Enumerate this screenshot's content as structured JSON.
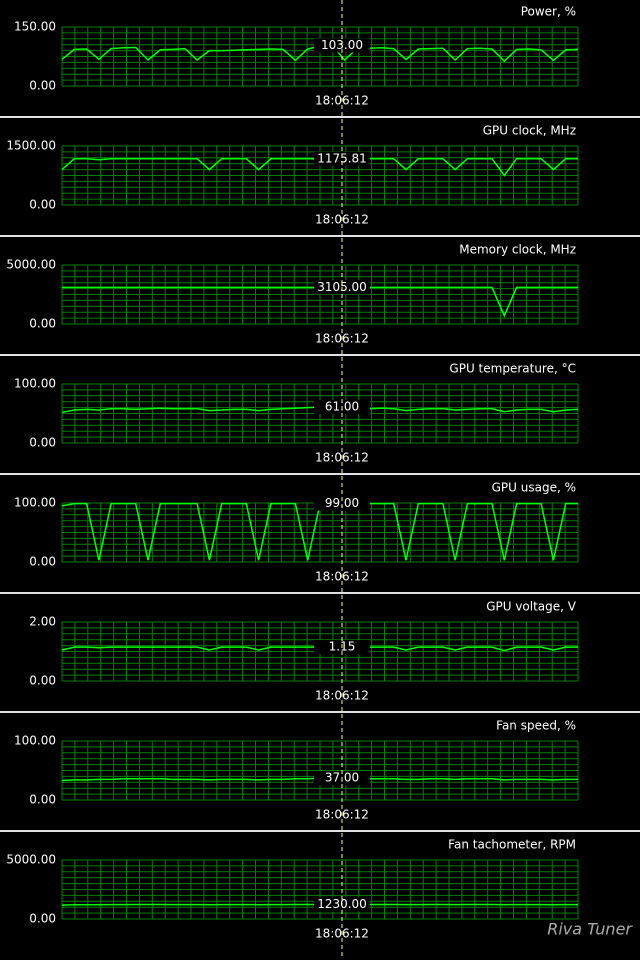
{
  "chart_data": [
    {
      "type": "line",
      "title": "Power, %",
      "time": "18:06:12",
      "current": {
        "value": 103,
        "label": "103.00"
      },
      "ylim": [
        0,
        150
      ],
      "yticks": [
        {
          "value": 0,
          "label": "0.00"
        },
        {
          "value": 150,
          "label": "150.00"
        }
      ],
      "color": "#00ff00",
      "grid": true,
      "values": [
        68,
        93,
        94,
        68,
        95,
        97,
        98,
        66,
        92,
        93,
        95,
        66,
        90,
        90,
        91,
        92,
        93,
        94,
        93,
        65,
        94,
        101,
        103,
        66,
        95,
        96,
        97,
        95,
        67,
        94,
        95,
        96,
        66,
        95,
        96,
        94,
        63,
        93,
        94,
        92,
        65,
        92,
        93
      ]
    },
    {
      "type": "line",
      "title": "GPU clock, MHz",
      "time": "18:06:12",
      "current": {
        "value": 1175.81,
        "label": "1175.81"
      },
      "ylim": [
        0,
        1500
      ],
      "yticks": [
        {
          "value": 0,
          "label": "0.00"
        },
        {
          "value": 1500,
          "label": "1500.00"
        }
      ],
      "color": "#00ff00",
      "grid": true,
      "values": [
        900,
        1176,
        1176,
        1150,
        1176,
        1176,
        1176,
        1176,
        1176,
        1176,
        1176,
        1176,
        900,
        1176,
        1176,
        1176,
        900,
        1176,
        1176,
        1176,
        1176,
        1176,
        1176,
        1176,
        1176,
        1176,
        1176,
        1176,
        900,
        1176,
        1176,
        1176,
        900,
        1176,
        1176,
        1176,
        750,
        1176,
        1176,
        1176,
        900,
        1176,
        1176
      ]
    },
    {
      "type": "line",
      "title": "Memory clock, MHz",
      "time": "18:06:12",
      "current": {
        "value": 3105,
        "label": "3105.00"
      },
      "ylim": [
        0,
        5000
      ],
      "yticks": [
        {
          "value": 0,
          "label": "0.00"
        },
        {
          "value": 5000,
          "label": "5000.00"
        }
      ],
      "color": "#00ff00",
      "grid": true,
      "values": [
        3105,
        3105,
        3105,
        3105,
        3105,
        3105,
        3105,
        3105,
        3105,
        3105,
        3105,
        3105,
        3105,
        3105,
        3105,
        3105,
        3105,
        3105,
        3105,
        3105,
        3105,
        3105,
        3105,
        3105,
        3105,
        3105,
        3105,
        3105,
        3105,
        3105,
        3105,
        3105,
        3105,
        3105,
        3105,
        3105,
        700,
        3105,
        3105,
        3105,
        3105,
        3105,
        3105
      ]
    },
    {
      "type": "line",
      "title": "GPU temperature, °C",
      "time": "18:06:12",
      "current": {
        "value": 61,
        "label": "61.00"
      },
      "ylim": [
        0,
        100
      ],
      "yticks": [
        {
          "value": 0,
          "label": "0.00"
        },
        {
          "value": 100,
          "label": "100.00"
        }
      ],
      "color": "#00ff00",
      "grid": true,
      "values": [
        52,
        56,
        57,
        56,
        58,
        58,
        57,
        58,
        59,
        58,
        58,
        58,
        55,
        56,
        57,
        57,
        55,
        57,
        58,
        59,
        60,
        61,
        61,
        61,
        58,
        58,
        59,
        58,
        55,
        57,
        58,
        58,
        56,
        57,
        58,
        58,
        53,
        56,
        57,
        57,
        53,
        56,
        57
      ]
    },
    {
      "type": "line",
      "title": "GPU usage, %",
      "time": "18:06:12",
      "current": {
        "value": 99,
        "label": "99.00"
      },
      "ylim": [
        0,
        100
      ],
      "yticks": [
        {
          "value": 0,
          "label": "0.00"
        },
        {
          "value": 100,
          "label": "100.00"
        }
      ],
      "color": "#00ff00",
      "grid": true,
      "values": [
        95,
        99,
        99,
        3,
        99,
        99,
        99,
        3,
        99,
        99,
        99,
        99,
        3,
        99,
        99,
        99,
        3,
        99,
        99,
        99,
        3,
        99,
        99,
        99,
        99,
        99,
        99,
        99,
        3,
        99,
        99,
        99,
        3,
        99,
        99,
        99,
        3,
        99,
        99,
        99,
        3,
        99,
        99
      ]
    },
    {
      "type": "line",
      "title": "GPU voltage, V",
      "time": "18:06:12",
      "current": {
        "value": 1.15,
        "label": "1.15"
      },
      "ylim": [
        0,
        2
      ],
      "yticks": [
        {
          "value": 0,
          "label": "0.00"
        },
        {
          "value": 2,
          "label": "2.00"
        }
      ],
      "color": "#00ff00",
      "grid": true,
      "values": [
        1.05,
        1.15,
        1.15,
        1.13,
        1.15,
        1.15,
        1.15,
        1.15,
        1.15,
        1.15,
        1.15,
        1.15,
        1.05,
        1.15,
        1.15,
        1.15,
        1.05,
        1.15,
        1.15,
        1.15,
        1.15,
        1.15,
        1.15,
        1.15,
        1.15,
        1.15,
        1.15,
        1.15,
        1.05,
        1.15,
        1.15,
        1.15,
        1.05,
        1.15,
        1.15,
        1.15,
        1.03,
        1.15,
        1.15,
        1.15,
        1.05,
        1.15,
        1.15
      ]
    },
    {
      "type": "line",
      "title": "Fan speed, %",
      "time": "18:06:12",
      "current": {
        "value": 37,
        "label": "37.00"
      },
      "ylim": [
        0,
        100
      ],
      "yticks": [
        {
          "value": 0,
          "label": "0.00"
        },
        {
          "value": 100,
          "label": "100.00"
        }
      ],
      "color": "#00ff00",
      "grid": true,
      "values": [
        33,
        34,
        34,
        35,
        35,
        36,
        36,
        36,
        36,
        35,
        35,
        35,
        34,
        35,
        35,
        35,
        34,
        35,
        35,
        36,
        36,
        37,
        37,
        37,
        36,
        36,
        36,
        36,
        35,
        35,
        36,
        36,
        35,
        36,
        36,
        36,
        34,
        35,
        35,
        35,
        34,
        35,
        35
      ]
    },
    {
      "type": "line",
      "title": "Fan tachometer, RPM",
      "time": "18:06:12",
      "current": {
        "value": 1230,
        "label": "1230.00"
      },
      "ylim": [
        0,
        5000
      ],
      "yticks": [
        {
          "value": 0,
          "label": "0.00"
        },
        {
          "value": 5000,
          "label": "5000.00"
        }
      ],
      "color": "#00ff00",
      "grid": true,
      "values": [
        1180,
        1200,
        1210,
        1210,
        1220,
        1220,
        1230,
        1230,
        1230,
        1220,
        1220,
        1220,
        1210,
        1220,
        1220,
        1220,
        1210,
        1220,
        1220,
        1230,
        1230,
        1230,
        1230,
        1230,
        1230,
        1230,
        1230,
        1230,
        1220,
        1220,
        1230,
        1230,
        1220,
        1230,
        1230,
        1230,
        1210,
        1220,
        1220,
        1220,
        1210,
        1220,
        1220
      ]
    }
  ],
  "watermark": "Riva Tuner"
}
